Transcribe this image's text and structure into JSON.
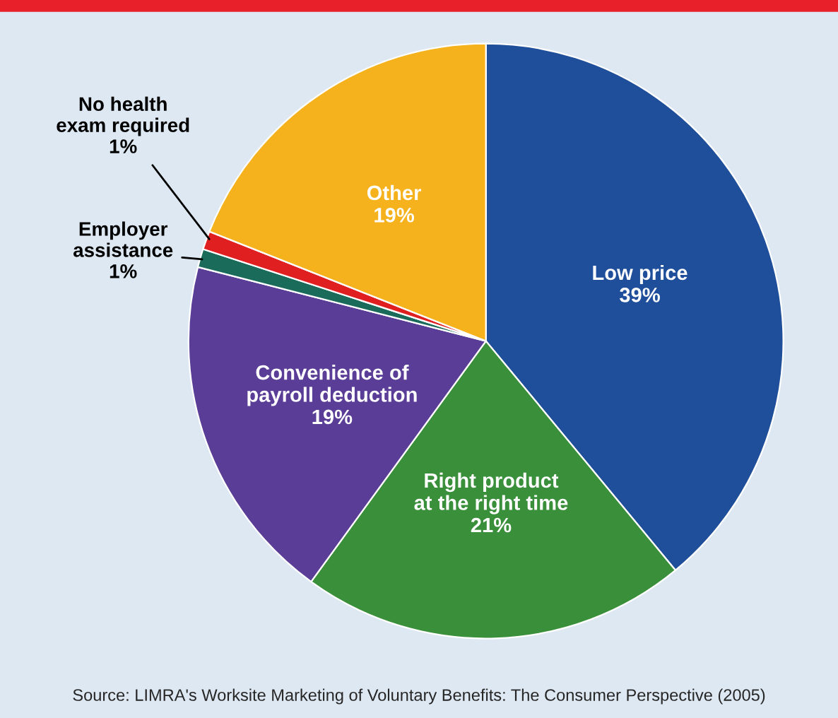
{
  "chart_data": {
    "type": "pie",
    "categories": [
      "Low price",
      "Right product\nat the right time",
      "Convenience of\npayroll deduction",
      "Employer\nassistance",
      "No health\nexam required",
      "Other"
    ],
    "values": [
      39,
      21,
      19,
      1,
      1,
      19
    ],
    "value_labels": [
      "39%",
      "21%",
      "19%",
      "1%",
      "1%",
      "19%"
    ],
    "colors": [
      "#1f4f9a",
      "#3a8f3a",
      "#5a3d97",
      "#1a6b5a",
      "#e02020",
      "#f5b21c"
    ],
    "annotations": [
      "Source: LIMRA's Worksite Marketing of Voluntary Benefits: The Consumer Perspective (2005)"
    ]
  }
}
